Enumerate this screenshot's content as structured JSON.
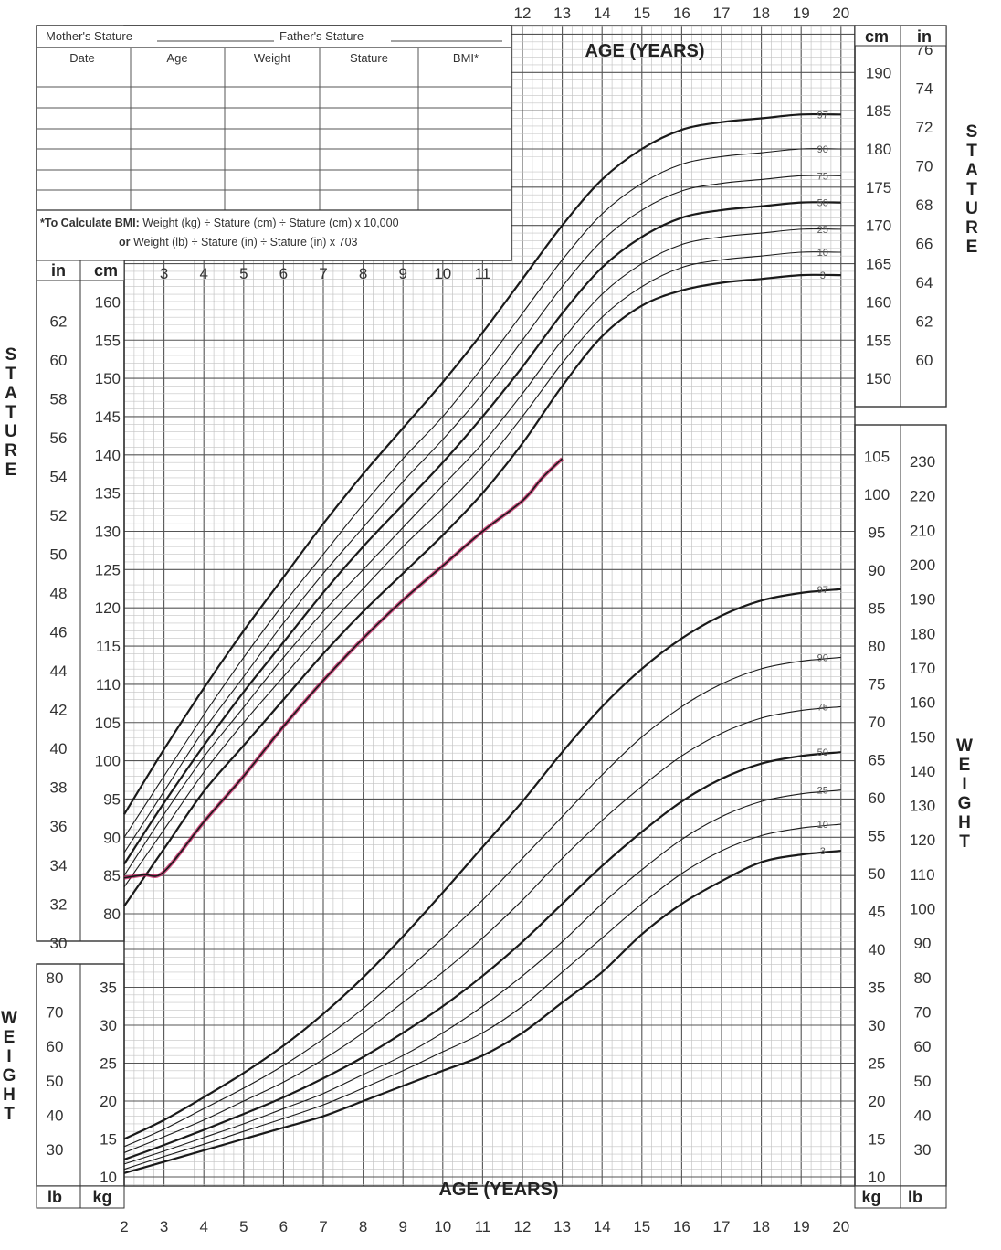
{
  "form": {
    "mothers_stature_label": "Mother's Stature",
    "fathers_stature_label": "Father's Stature",
    "columns": [
      "Date",
      "Age",
      "Weight",
      "Stature",
      "BMI*"
    ],
    "bmi_note_label": "*To Calculate BMI:",
    "bmi_note_line1": "Weight (kg) ÷ Stature (cm) ÷ Stature (cm) x 10,000",
    "bmi_note_line2_label": "or",
    "bmi_note_line2": "Weight (lb) ÷ Stature (in) ÷ Stature (in) x 703"
  },
  "labels": {
    "age_years_top": "AGE (YEARS)",
    "age_years_bottom": "AGE (YEARS)",
    "stature_vertical": "STATURE",
    "weight_vertical": "WEIGHT",
    "cm": "cm",
    "in": "in",
    "kg": "kg",
    "lb": "lb"
  },
  "chart_data": {
    "type": "line",
    "x_ticks_bottom": [
      2,
      3,
      4,
      5,
      6,
      7,
      8,
      9,
      10,
      11,
      12,
      13,
      14,
      15,
      16,
      17,
      18,
      19,
      20
    ],
    "x_ticks_top": [
      12,
      13,
      14,
      15,
      16,
      17,
      18,
      19,
      20
    ],
    "x_ticks_stature_row": [
      3,
      4,
      5,
      6,
      7,
      8,
      9,
      10,
      11
    ],
    "xlim": [
      2,
      20
    ],
    "stature_axis": {
      "unit": "cm",
      "ylim": [
        77,
        196
      ],
      "left_cm_ticks": [
        80,
        85,
        90,
        95,
        100,
        105,
        110,
        115,
        120,
        125,
        130,
        135,
        140,
        145,
        150,
        155,
        160
      ],
      "right_cm_ticks": [
        150,
        155,
        160,
        165,
        170,
        175,
        180,
        185,
        190
      ],
      "left_in_ticks": [
        30,
        32,
        34,
        36,
        38,
        40,
        42,
        44,
        46,
        48,
        50,
        52,
        54,
        56,
        58,
        60,
        62
      ],
      "right_in_ticks": [
        60,
        62,
        64,
        66,
        68,
        70,
        72,
        74,
        76
      ]
    },
    "weight_axis": {
      "unit": "kg",
      "ylim": [
        8,
        113
      ],
      "left_kg_ticks": [
        10,
        15,
        20,
        25,
        30,
        35
      ],
      "right_kg_ticks": [
        10,
        15,
        20,
        25,
        30,
        35,
        40,
        45,
        50,
        55,
        60,
        65,
        70,
        75,
        80,
        85,
        90,
        95,
        100,
        105
      ],
      "left_lb_ticks": [
        30,
        40,
        50,
        60,
        70,
        80
      ],
      "right_lb_ticks": [
        30,
        40,
        50,
        60,
        70,
        80,
        90,
        100,
        110,
        120,
        130,
        140,
        150,
        160,
        170,
        180,
        190,
        200,
        210,
        220,
        230
      ]
    },
    "x": [
      2,
      3,
      4,
      5,
      6,
      7,
      8,
      9,
      10,
      11,
      12,
      13,
      14,
      15,
      16,
      17,
      18,
      19,
      20
    ],
    "stature_series": [
      {
        "name": "3",
        "values": [
          81,
          88.5,
          96,
          102,
          108,
          114,
          119.5,
          124.5,
          129.5,
          135,
          141.5,
          149,
          155.5,
          159.5,
          161.5,
          162.5,
          163,
          163.5,
          163.5
        ]
      },
      {
        "name": "10",
        "values": [
          83.5,
          91,
          98.5,
          105,
          111,
          117,
          122.5,
          128,
          133,
          138.5,
          145,
          152,
          158,
          162,
          164.5,
          165.5,
          166,
          166.5,
          166.5
        ]
      },
      {
        "name": "25",
        "values": [
          85,
          93,
          100.5,
          107,
          113.5,
          119.5,
          125,
          130.5,
          136,
          141.5,
          148,
          155,
          161,
          165,
          167.5,
          168.5,
          169,
          169.5,
          169.5
        ]
      },
      {
        "name": "50",
        "values": [
          86.5,
          94.5,
          102,
          109,
          115.5,
          122,
          128,
          133.5,
          139,
          145,
          151.5,
          158.5,
          164.5,
          168.5,
          171,
          172,
          172.5,
          173,
          173
        ]
      },
      {
        "name": "75",
        "values": [
          88,
          96,
          104,
          111,
          118,
          124.5,
          130.5,
          136.5,
          142,
          148,
          155,
          162,
          168,
          172,
          174.5,
          175.5,
          176,
          176.5,
          176.5
        ]
      },
      {
        "name": "90",
        "values": [
          90,
          98,
          106,
          113.5,
          120.5,
          127,
          133.5,
          139.5,
          145,
          151.5,
          158.5,
          165.5,
          171.5,
          175.5,
          178,
          179,
          179.5,
          180,
          180
        ]
      },
      {
        "name": "97",
        "values": [
          93,
          101.5,
          109.5,
          117,
          124,
          131,
          137.5,
          143.5,
          149.5,
          156,
          163,
          170,
          176,
          180,
          182.5,
          183.5,
          184,
          184.5,
          184.5
        ]
      }
    ],
    "weight_series": [
      {
        "name": "3",
        "values": [
          10.5,
          12,
          13.5,
          15,
          16.5,
          18,
          20,
          22,
          24,
          26,
          29,
          33,
          37,
          42,
          46,
          49,
          51.5,
          52.5,
          53
        ]
      },
      {
        "name": "10",
        "values": [
          11,
          12.7,
          14.3,
          16,
          17.7,
          19.5,
          21.7,
          24,
          26.5,
          29,
          32.5,
          37,
          41.5,
          46,
          50,
          53,
          55,
          56,
          56.5
        ]
      },
      {
        "name": "25",
        "values": [
          11.7,
          13.4,
          15.2,
          17,
          19,
          21,
          23.5,
          26,
          29,
          32.5,
          36.5,
          41,
          46,
          50.5,
          54.5,
          57.5,
          59.5,
          60.5,
          61
        ]
      },
      {
        "name": "50",
        "values": [
          12.3,
          14.2,
          16.2,
          18.3,
          20.5,
          23,
          25.8,
          29,
          32.5,
          36.5,
          41,
          46,
          51,
          55.5,
          59.5,
          62.5,
          64.5,
          65.5,
          66
        ]
      },
      {
        "name": "75",
        "values": [
          13.2,
          15.3,
          17.5,
          20,
          22.5,
          25.5,
          29,
          33,
          37,
          41.5,
          46.5,
          52,
          57,
          61.5,
          65.5,
          68.5,
          70.5,
          71.5,
          72
        ]
      },
      {
        "name": "90",
        "values": [
          14,
          16.3,
          19,
          21.7,
          24.7,
          28.2,
          32.2,
          36.8,
          41.5,
          46.5,
          52,
          57.5,
          63,
          68,
          72,
          75,
          77,
          78,
          78.5
        ]
      },
      {
        "name": "97",
        "values": [
          15,
          17.5,
          20.5,
          23.7,
          27.3,
          31.5,
          36.3,
          41.7,
          47.5,
          53.5,
          59.5,
          66,
          72,
          77,
          81,
          84,
          86,
          87,
          87.5
        ]
      }
    ],
    "patient_stature": {
      "x": [
        2,
        2.5,
        3,
        4,
        5,
        6,
        7,
        8,
        9,
        10,
        11,
        12,
        12.5,
        13
      ],
      "values": [
        84.7,
        85.1,
        85.5,
        92,
        98,
        104.5,
        110.5,
        116,
        121,
        125.5,
        130,
        134,
        137,
        139.5
      ],
      "color": "#c2185b"
    }
  }
}
